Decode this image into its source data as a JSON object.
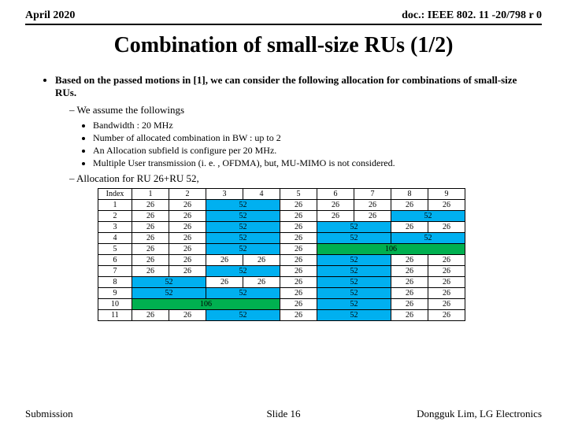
{
  "header": {
    "date": "April 2020",
    "doc": "doc.: IEEE 802. 11 -20/798 r 0"
  },
  "title": "Combination of small-size RUs (1/2)",
  "intro": "Based on the passed motions in [1], we can consider the following allocation for combinations of small-size RUs.",
  "assume_heading": "We assume the followings",
  "assumptions": [
    "Bandwidth : 20 MHz",
    "Number of allocated combination in BW : up to 2",
    "An Allocation subfield is configure per 20 MHz.",
    "Multiple User transmission (i. e. , OFDMA), but, MU-MIMO is not considered."
  ],
  "alloc_heading": "Allocation for RU 26+RU 52,",
  "table": {
    "colors": {
      "ru26": "#ffffff",
      "ru52": "#00b0f0",
      "ru106": "#00b050",
      "border": "#000000"
    },
    "header": [
      "Index",
      "1",
      "2",
      "3",
      "4",
      "5",
      "6",
      "7",
      "8",
      "9"
    ],
    "rows": [
      {
        "idx": "1",
        "cells": [
          {
            "v": "26",
            "t": "26",
            "s": 1
          },
          {
            "v": "26",
            "t": "26",
            "s": 1
          },
          {
            "v": "52",
            "t": "52",
            "s": 2
          },
          {
            "v": "26",
            "t": "26",
            "s": 1
          },
          {
            "v": "26",
            "t": "26",
            "s": 1
          },
          {
            "v": "26",
            "t": "26",
            "s": 1
          },
          {
            "v": "26",
            "t": "26",
            "s": 1
          },
          {
            "v": "26",
            "t": "26",
            "s": 1
          }
        ]
      },
      {
        "idx": "2",
        "cells": [
          {
            "v": "26",
            "t": "26",
            "s": 1
          },
          {
            "v": "26",
            "t": "26",
            "s": 1
          },
          {
            "v": "52",
            "t": "52",
            "s": 2
          },
          {
            "v": "26",
            "t": "26",
            "s": 1
          },
          {
            "v": "26",
            "t": "26",
            "s": 1
          },
          {
            "v": "26",
            "t": "26",
            "s": 1
          },
          {
            "v": "52",
            "t": "52",
            "s": 2
          }
        ]
      },
      {
        "idx": "3",
        "cells": [
          {
            "v": "26",
            "t": "26",
            "s": 1
          },
          {
            "v": "26",
            "t": "26",
            "s": 1
          },
          {
            "v": "52",
            "t": "52",
            "s": 2
          },
          {
            "v": "26",
            "t": "26",
            "s": 1
          },
          {
            "v": "52",
            "t": "52",
            "s": 2
          },
          {
            "v": "26",
            "t": "26",
            "s": 1
          },
          {
            "v": "26",
            "t": "26",
            "s": 1
          }
        ]
      },
      {
        "idx": "4",
        "cells": [
          {
            "v": "26",
            "t": "26",
            "s": 1
          },
          {
            "v": "26",
            "t": "26",
            "s": 1
          },
          {
            "v": "52",
            "t": "52",
            "s": 2
          },
          {
            "v": "26",
            "t": "26",
            "s": 1
          },
          {
            "v": "52",
            "t": "52",
            "s": 2
          },
          {
            "v": "52",
            "t": "52",
            "s": 2
          }
        ]
      },
      {
        "idx": "5",
        "cells": [
          {
            "v": "26",
            "t": "26",
            "s": 1
          },
          {
            "v": "26",
            "t": "26",
            "s": 1
          },
          {
            "v": "52",
            "t": "52",
            "s": 2
          },
          {
            "v": "26",
            "t": "26",
            "s": 1
          },
          {
            "v": "106",
            "t": "106",
            "s": 4
          }
        ]
      },
      {
        "idx": "6",
        "cells": [
          {
            "v": "26",
            "t": "26",
            "s": 1
          },
          {
            "v": "26",
            "t": "26",
            "s": 1
          },
          {
            "v": "26",
            "t": "26",
            "s": 1
          },
          {
            "v": "26",
            "t": "26",
            "s": 1
          },
          {
            "v": "26",
            "t": "26",
            "s": 1
          },
          {
            "v": "52",
            "t": "52",
            "s": 2
          },
          {
            "v": "26",
            "t": "26",
            "s": 1
          },
          {
            "v": "26",
            "t": "26",
            "s": 1
          }
        ]
      },
      {
        "idx": "7",
        "cells": [
          {
            "v": "26",
            "t": "26",
            "s": 1
          },
          {
            "v": "26",
            "t": "26",
            "s": 1
          },
          {
            "v": "52",
            "t": "52",
            "s": 2
          },
          {
            "v": "26",
            "t": "26",
            "s": 1
          },
          {
            "v": "52",
            "t": "52",
            "s": 2
          },
          {
            "v": "26",
            "t": "26",
            "s": 1
          },
          {
            "v": "26",
            "t": "26",
            "s": 1
          }
        ]
      },
      {
        "idx": "8",
        "cells": [
          {
            "v": "52",
            "t": "52",
            "s": 2
          },
          {
            "v": "26",
            "t": "26",
            "s": 1
          },
          {
            "v": "26",
            "t": "26",
            "s": 1
          },
          {
            "v": "26",
            "t": "26",
            "s": 1
          },
          {
            "v": "52",
            "t": "52",
            "s": 2
          },
          {
            "v": "26",
            "t": "26",
            "s": 1
          },
          {
            "v": "26",
            "t": "26",
            "s": 1
          }
        ]
      },
      {
        "idx": "9",
        "cells": [
          {
            "v": "52",
            "t": "52",
            "s": 2
          },
          {
            "v": "52",
            "t": "52",
            "s": 2
          },
          {
            "v": "26",
            "t": "26",
            "s": 1
          },
          {
            "v": "52",
            "t": "52",
            "s": 2
          },
          {
            "v": "26",
            "t": "26",
            "s": 1
          },
          {
            "v": "26",
            "t": "26",
            "s": 1
          }
        ]
      },
      {
        "idx": "10",
        "cells": [
          {
            "v": "106",
            "t": "106",
            "s": 4
          },
          {
            "v": "26",
            "t": "26",
            "s": 1
          },
          {
            "v": "52",
            "t": "52",
            "s": 2
          },
          {
            "v": "26",
            "t": "26",
            "s": 1
          },
          {
            "v": "26",
            "t": "26",
            "s": 1
          }
        ]
      },
      {
        "idx": "11",
        "cells": [
          {
            "v": "26",
            "t": "26",
            "s": 1
          },
          {
            "v": "26",
            "t": "26",
            "s": 1
          },
          {
            "v": "52",
            "t": "52",
            "s": 2
          },
          {
            "v": "26",
            "t": "26",
            "s": 1
          },
          {
            "v": "52",
            "t": "52",
            "s": 2
          },
          {
            "v": "26",
            "t": "26",
            "s": 1
          },
          {
            "v": "26",
            "t": "26",
            "s": 1
          }
        ]
      }
    ]
  },
  "footer": {
    "left": "Submission",
    "center": "Slide 16",
    "right": "Dongguk Lim, LG Electronics"
  }
}
